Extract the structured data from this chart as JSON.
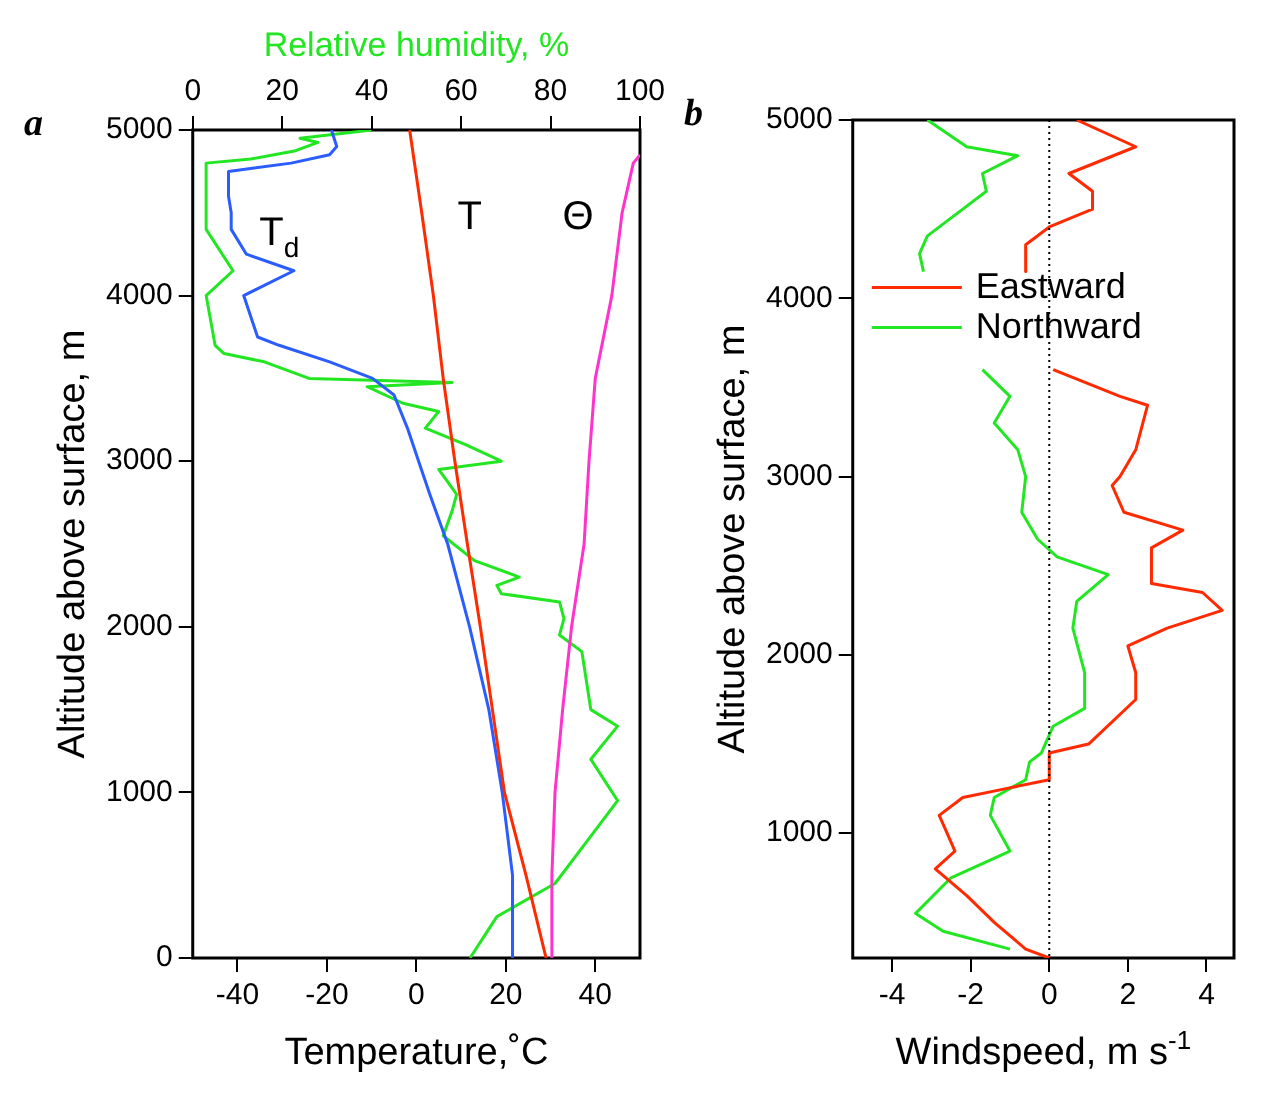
{
  "chart_data": [
    {
      "type": "line",
      "title": "a",
      "xlabel": "Temperature,˚C",
      "x2label": "Relative humidity, %",
      "ylabel": "Altitude above surface, m",
      "xlim": [
        -50,
        50
      ],
      "xticks": [
        -40,
        -20,
        0,
        20,
        40
      ],
      "x2lim": [
        0,
        100
      ],
      "x2ticks": [
        0,
        20,
        40,
        60,
        80,
        100
      ],
      "ylim": [
        0,
        5000
      ],
      "yticks": [
        0,
        1000,
        2000,
        3000,
        4000,
        5000
      ],
      "grid": false,
      "marker": "none",
      "legend": false,
      "series": [
        {
          "name": "T",
          "color": "#ff2a00",
          "x": [
            29,
            24.5,
            19.7,
            17,
            14.3,
            11.4,
            8.6,
            6,
            3.8,
            1.2,
            -1.5
          ],
          "values": [
            0,
            500,
            1000,
            1500,
            2000,
            2500,
            3000,
            3500,
            4000,
            4500,
            5000
          ]
        },
        {
          "name": "Θ",
          "color": "#ff33cc",
          "x": [
            30,
            30.3,
            31,
            32.7,
            34.7,
            37.5,
            38.6,
            40,
            43.7,
            46,
            48.5,
            50
          ],
          "values": [
            0,
            500,
            1000,
            1500,
            2000,
            2500,
            3000,
            3500,
            4000,
            4500,
            4800,
            4850
          ]
        },
        {
          "name": "T$_{d}$",
          "color": "#2a5cff",
          "x": [
            21.5,
            21.5,
            19.2,
            16.2,
            11.9,
            7,
            3,
            0.5,
            -2,
            -5,
            -9.8,
            -19.4,
            -30.7,
            -35.5,
            -38.6,
            -27.4,
            -38,
            -41.4,
            -41.4,
            -42,
            -42,
            -28,
            -19.4,
            -17.8,
            -19
          ],
          "values": [
            0,
            500,
            1000,
            1500,
            2000,
            2500,
            2800,
            3000,
            3200,
            3400,
            3500,
            3600,
            3700,
            3750,
            4000,
            4150,
            4250,
            4400,
            4500,
            4600,
            4750,
            4800,
            4850,
            4900,
            5000
          ]
        },
        {
          "color": "#22e622",
          "axis": "x2",
          "x": [
            62,
            68,
            81,
            88,
            95,
            89,
            95,
            89,
            87,
            82,
            83,
            82,
            69,
            68,
            73,
            63,
            56,
            58,
            59,
            55,
            69,
            61,
            52,
            55,
            47,
            39,
            58,
            26,
            16,
            7,
            5,
            3,
            9,
            3,
            3,
            13,
            23,
            28,
            24,
            40
          ],
          "values": [
            0,
            250,
            450,
            700,
            950,
            1200,
            1400,
            1500,
            1850,
            1950,
            2050,
            2150,
            2200,
            2250,
            2300,
            2400,
            2550,
            2700,
            2800,
            2950,
            3000,
            3100,
            3200,
            3300,
            3350,
            3450,
            3475,
            3500,
            3600,
            3650,
            3700,
            4000,
            4150,
            4400,
            4800,
            4825,
            4875,
            4925,
            4950,
            5000
          ]
        }
      ]
    },
    {
      "type": "line",
      "title": "b",
      "xlabel": "Windspeed, m s$^{-1}$",
      "ylabel": "Altitude above surface, m",
      "xlim": [
        -5,
        4.7
      ],
      "xticks": [
        -4,
        -2,
        0,
        2,
        4
      ],
      "ylim": [
        300,
        5000
      ],
      "yticks": [
        1000,
        2000,
        3000,
        4000,
        5000
      ],
      "grid": false,
      "marker": "none",
      "legend": "top left",
      "ref_lines": [
        {
          "axis": "x",
          "value": 0,
          "line_style": "dotted"
        }
      ],
      "series": [
        {
          "name": "Eastward",
          "color": "#ff2a00",
          "x": [
            0.7,
            2.2,
            0.5,
            1.1,
            1.1,
            0,
            -0.6,
            -0.6,
            null,
            0.1,
            1.8,
            2.5,
            2.2,
            1.8,
            1.6,
            1.9,
            3.4,
            2.6,
            2.6,
            3.9,
            4.4,
            3.0,
            2.0,
            2.2,
            2.2,
            1.0,
            0,
            0,
            -1.1,
            -2.2,
            -2.8,
            -2.6,
            -2.4,
            -2.9,
            -2.1,
            -1.4,
            -0.6,
            0
          ],
          "values": [
            5000,
            4850,
            4700,
            4600,
            4500,
            4400,
            4300,
            4150,
            null,
            3600,
            3450,
            3400,
            3150,
            3000,
            2950,
            2800,
            2700,
            2600,
            2400,
            2350,
            2250,
            2150,
            2050,
            1900,
            1750,
            1500,
            1450,
            1300,
            1250,
            1200,
            1100,
            1000,
            900,
            800,
            650,
            500,
            350,
            300
          ]
        },
        {
          "name": "Northward",
          "color": "#22e622",
          "x": [
            -3.1,
            -2.1,
            -0.8,
            -1.7,
            -1.6,
            -2.2,
            -3.1,
            -3.3,
            -3.2,
            null,
            -1.7,
            -1.0,
            -1.4,
            -0.8,
            -0.6,
            -0.7,
            -0.3,
            0.2,
            1.5,
            0.7,
            0.6,
            0.9,
            0.9,
            0.1,
            -0.2,
            -0.5,
            -0.6,
            -1.4,
            -1.5,
            -1.0,
            -2.5,
            -3.4,
            -2.7,
            -1.0
          ],
          "values": [
            5000,
            4850,
            4800,
            4700,
            4600,
            4500,
            4350,
            4250,
            4150,
            null,
            3600,
            3450,
            3300,
            3150,
            3000,
            2800,
            2650,
            2550,
            2450,
            2300,
            2150,
            1900,
            1700,
            1600,
            1450,
            1400,
            1300,
            1200,
            1100,
            900,
            750,
            550,
            450,
            350
          ]
        }
      ]
    }
  ]
}
